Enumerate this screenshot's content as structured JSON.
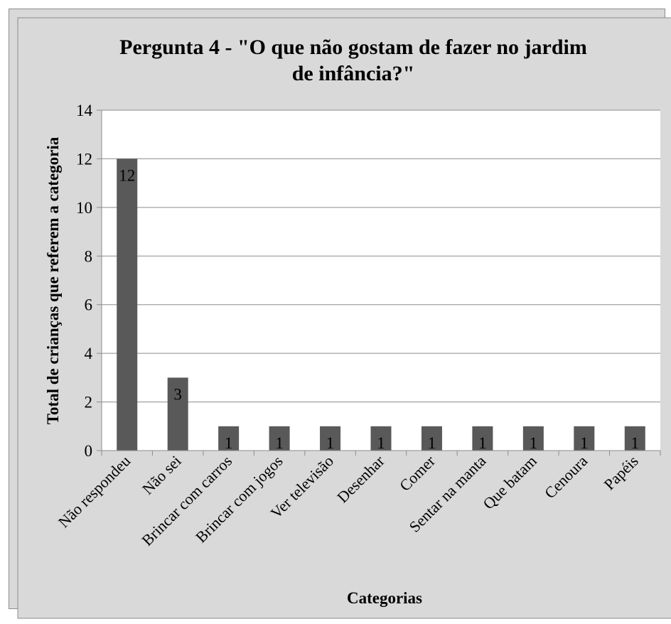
{
  "chart_data": {
    "type": "bar",
    "title": "Pergunta 4 - \"O que não gostam de fazer no jardim de infância?\"",
    "title_lines": [
      "Pergunta 4 - \"O que não gostam de fazer no jardim",
      "de infância?\""
    ],
    "xlabel": "Categorias",
    "ylabel": "Total de crianças que referem a categoria",
    "categories": [
      "Não respondeu",
      "Não sei",
      "Brincar com carros",
      "Brincar com jogos",
      "Ver televisão",
      "Desenhar",
      "Comer",
      "Sentar na manta",
      "Que batam",
      "Cenoura",
      "Papéis"
    ],
    "values": [
      12,
      3,
      1,
      1,
      1,
      1,
      1,
      1,
      1,
      1,
      1
    ],
    "ylim": [
      0,
      14
    ],
    "yticks": [
      0,
      2,
      4,
      6,
      8,
      10,
      12,
      14
    ],
    "grid": true,
    "legend": "none",
    "bar_color": "#595959",
    "background_color": "#d9d9d9",
    "plot_background_color": "#ffffff"
  }
}
